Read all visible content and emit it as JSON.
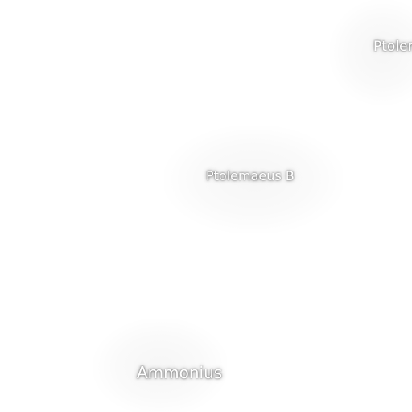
{
  "map": {
    "labels": {
      "ptolemaeus": "Ptolemaeus",
      "ptolemaeus_b": "Ptolemaeus B",
      "ammonius": "Ammonius"
    },
    "colors": {
      "background": "#ffffff",
      "label_text": "#ffffff",
      "label_halo": "#000000"
    }
  }
}
